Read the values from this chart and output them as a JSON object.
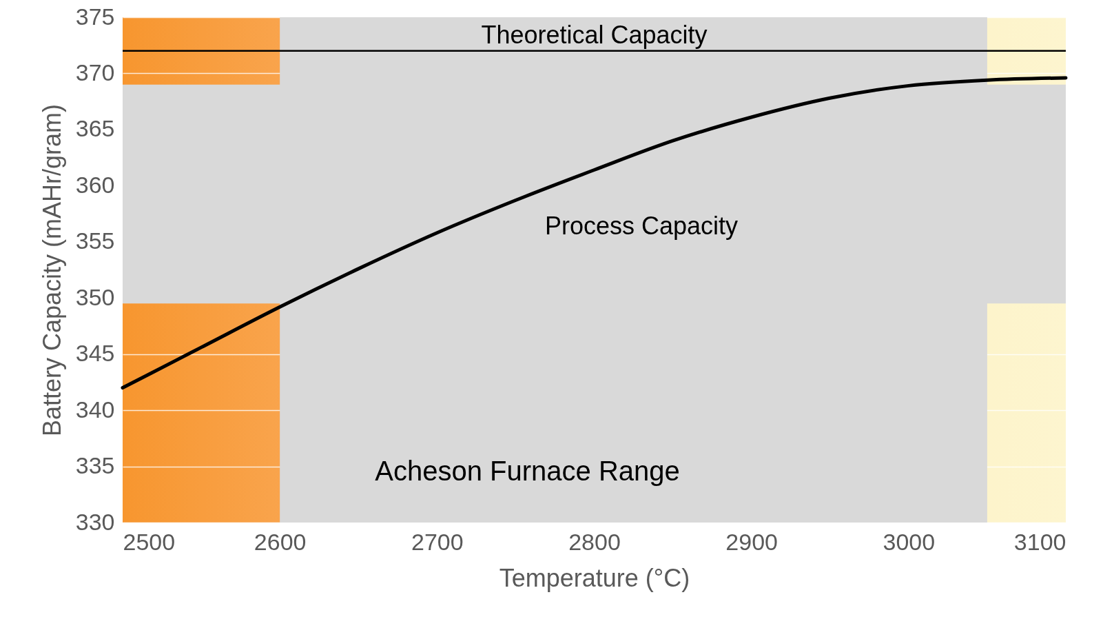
{
  "chart_data": {
    "type": "line",
    "xlabel": "Temperature (°C)",
    "ylabel": "Battery Capacity (mAHr/gram)",
    "x": [
      2500,
      2550,
      2600,
      2650,
      2700,
      2750,
      2800,
      2850,
      2900,
      2950,
      3000,
      3050,
      3100
    ],
    "series": [
      {
        "color": "#000000",
        "values": [
          342,
          345.6,
          349.2,
          352.6,
          355.8,
          358.7,
          361.4,
          364,
          366.1,
          367.8,
          368.9,
          369.4,
          369.6
        ]
      }
    ],
    "xlim": [
      2500,
      3100
    ],
    "ylim": [
      330,
      375
    ],
    "xticks": [
      2500,
      2600,
      2700,
      2800,
      2900,
      3000,
      3100
    ],
    "yticks": [
      330,
      335,
      340,
      345,
      350,
      355,
      360,
      365,
      370,
      375
    ],
    "grid": "y",
    "ref_lines": [
      {
        "axis": "y",
        "value": 372,
        "label": "Theoretical Capacity",
        "color": "#000000"
      }
    ],
    "bands": [
      {
        "axis": "y",
        "from": 349.5,
        "to": 369,
        "label": "Process Capacity",
        "color": "#d9d9d9"
      },
      {
        "axis": "x",
        "from": 2600,
        "to": 3050,
        "label": "Acheson Furnace Range",
        "color": "#d9d9d9"
      }
    ]
  }
}
